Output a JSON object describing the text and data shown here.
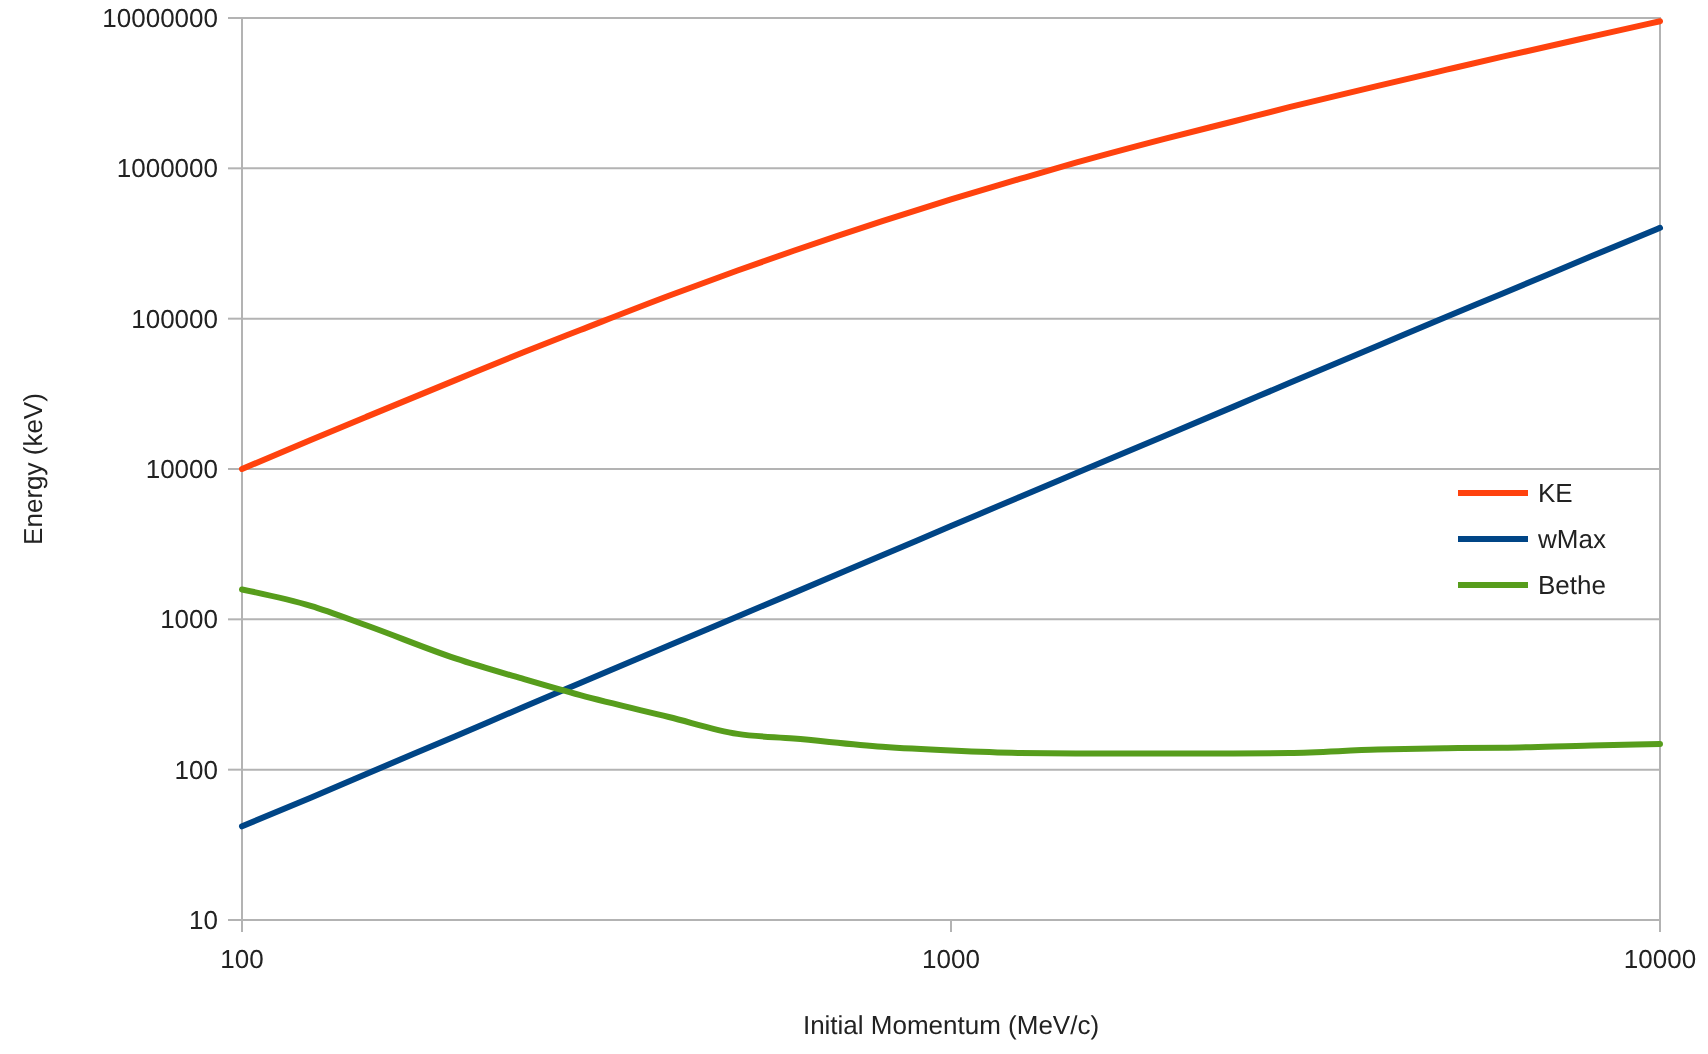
{
  "chart_data": {
    "type": "line",
    "xlabel": "Initial Momentum (MeV/c)",
    "ylabel": "Energy (keV)",
    "x": [
      100,
      125,
      150,
      200,
      250,
      300,
      400,
      500,
      600,
      800,
      1000,
      1250,
      1500,
      2000,
      2500,
      3000,
      4000,
      5000,
      6000,
      8000,
      10000
    ],
    "series": [
      {
        "name": "KE",
        "color": "#ff420e",
        "values": [
          10000,
          15600,
          22300,
          39000,
          60000,
          84000,
          142000,
          209000,
          283000,
          446000,
          622000,
          850000,
          1090000,
          1570000,
          2050000,
          2550000,
          3540000,
          4530000,
          5530000,
          7520000,
          9520000
        ]
      },
      {
        "name": "wMax",
        "color": "#004586",
        "values": [
          42,
          65,
          94,
          167,
          262,
          377,
          669,
          1045,
          1500,
          2670,
          4170,
          6520,
          9370,
          16600,
          25900,
          37300,
          66000,
          103000,
          147000,
          260000,
          402000
        ]
      },
      {
        "name": "Bethe",
        "color": "#579d1c",
        "values": [
          1580,
          1230,
          910,
          550,
          400,
          313,
          224,
          173,
          161,
          142,
          134,
          129,
          128,
          128,
          128,
          129,
          136,
          139,
          140,
          145,
          148
        ]
      }
    ],
    "xlim": [
      100,
      10000
    ],
    "ylim": [
      10,
      10000000
    ],
    "xticks": [
      100,
      1000,
      10000
    ],
    "yticks": [
      10,
      100,
      1000,
      10000,
      100000,
      1000000,
      10000000
    ],
    "log": "xy",
    "grid": "y",
    "legend": "right"
  }
}
